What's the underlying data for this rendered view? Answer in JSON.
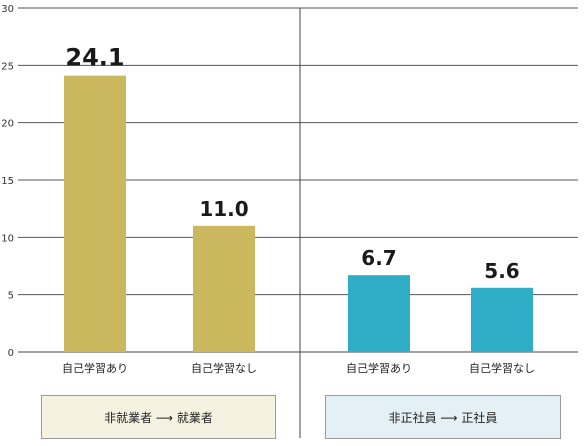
{
  "chart_data": {
    "type": "bar",
    "ylim": [
      0,
      30
    ],
    "yticks": [
      0,
      5,
      10,
      15,
      20,
      25,
      30
    ],
    "grid": true,
    "categories": [
      "自己学習あり",
      "自己学習なし",
      "自己学習あり",
      "自己学習なし"
    ],
    "values": [
      24.1,
      11.0,
      6.7,
      5.6
    ],
    "value_labels": [
      "24.1",
      "11.0",
      "6.7",
      "5.6"
    ],
    "groups": [
      {
        "label": "非就業者 ⟶ 就業者",
        "color": "#cbb75e",
        "box_color": "#f6f2e2"
      },
      {
        "label": "非正社員 ⟶ 正社員",
        "color": "#2fadc7",
        "box_color": "#e3f0f6"
      }
    ],
    "bar_group": [
      0,
      0,
      1,
      1
    ]
  }
}
